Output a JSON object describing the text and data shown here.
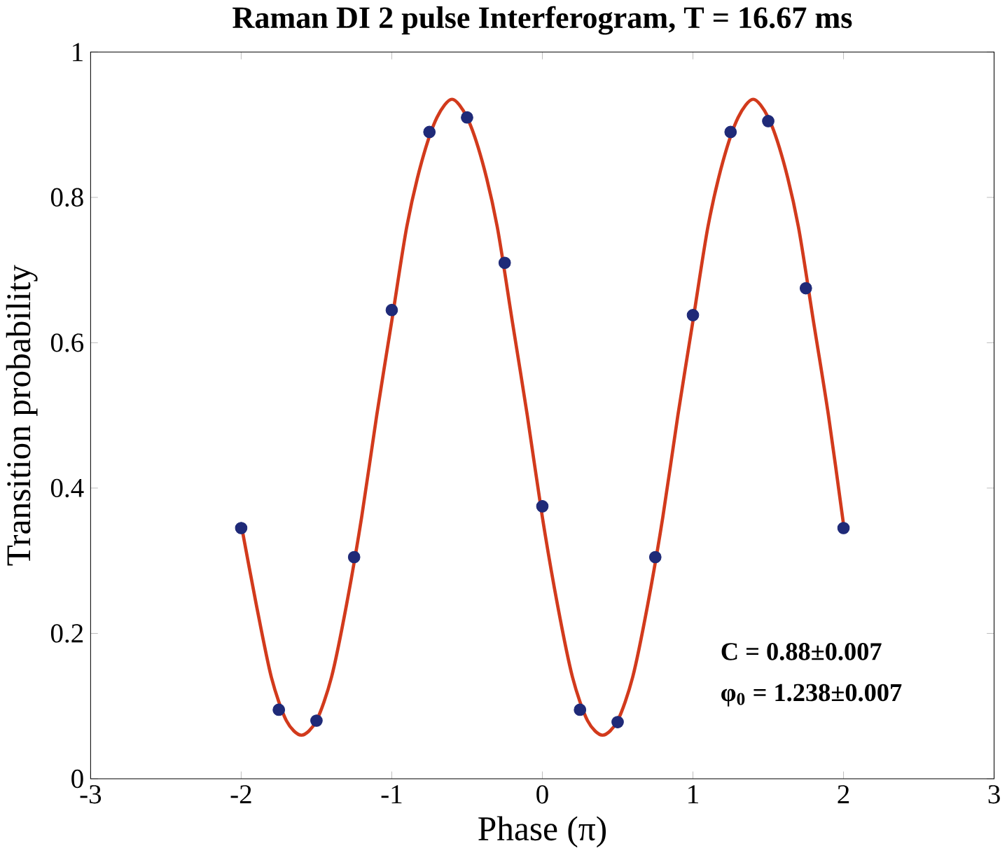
{
  "chart_data": {
    "type": "line",
    "title": "Raman DI 2 pulse Interferogram, T = 16.67 ms",
    "xlabel": "Phase (π)",
    "ylabel": "Transition probability",
    "xlim": [
      -3,
      3
    ],
    "ylim": [
      0,
      1
    ],
    "xticks": [
      -3,
      -2,
      -1,
      0,
      1,
      2,
      3
    ],
    "yticks": [
      0,
      0.2,
      0.4,
      0.6,
      0.8,
      1
    ],
    "grid": false,
    "annotations": [
      "C = 0.88±0.007",
      "φ$_{0}$ = 1.238±0.007"
    ],
    "series": [
      {
        "color": "#d23a1c",
        "marker": "none",
        "line_style": "solid",
        "x": [
          -2,
          -1.9,
          -1.8,
          -1.7,
          -1.6,
          -1.5,
          -1.4,
          -1.3,
          -1.2,
          -1.1,
          -1,
          -0.9,
          -0.8,
          -0.7,
          -0.6,
          -0.5,
          -0.4,
          -0.3,
          -0.2,
          -0.1,
          0,
          0.1,
          0.2,
          0.3,
          0.4,
          0.5,
          0.6,
          0.7,
          0.8,
          0.9,
          1,
          1.1,
          1.2,
          1.3,
          1.4,
          1.5,
          1.6,
          1.7,
          1.8,
          1.9,
          2
        ],
        "values": [
          0.35,
          0.24,
          0.14,
          0.08,
          0.06,
          0.08,
          0.14,
          0.24,
          0.36,
          0.5,
          0.63,
          0.76,
          0.85,
          0.91,
          0.935,
          0.91,
          0.85,
          0.76,
          0.63,
          0.5,
          0.36,
          0.24,
          0.14,
          0.08,
          0.06,
          0.08,
          0.14,
          0.24,
          0.36,
          0.5,
          0.63,
          0.76,
          0.85,
          0.91,
          0.935,
          0.91,
          0.85,
          0.76,
          0.63,
          0.5,
          0.35
        ]
      },
      {
        "type": "scatter",
        "color": "#1f2a78",
        "marker": "circle",
        "x": [
          -2,
          -1.75,
          -1.5,
          -1.25,
          -1,
          -0.75,
          -0.5,
          -0.25,
          0,
          0.25,
          0.5,
          0.75,
          1,
          1.25,
          1.5,
          1.75,
          2
        ],
        "values": [
          0.345,
          0.095,
          0.08,
          0.305,
          0.645,
          0.89,
          0.91,
          0.71,
          0.375,
          0.095,
          0.078,
          0.305,
          0.638,
          0.89,
          0.905,
          0.675,
          0.345
        ]
      }
    ]
  }
}
